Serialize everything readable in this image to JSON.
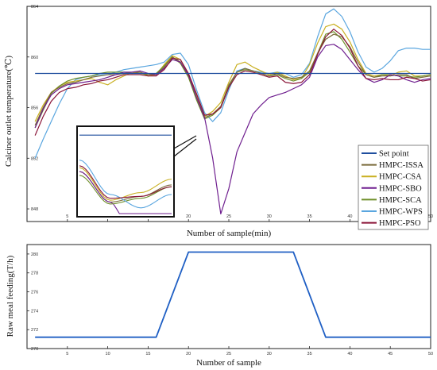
{
  "chart_data": [
    {
      "type": "line",
      "title": "",
      "xlabel": "Number of sample(min)",
      "ylabel": "Calciner outlet temperature(℃)",
      "xlim": [
        0,
        50
      ],
      "ylim": [
        847,
        864
      ],
      "x_ticks": [
        5,
        10,
        15,
        20,
        25,
        30,
        35,
        40,
        45,
        50
      ],
      "y_ticks": [
        848,
        852,
        856,
        860,
        864
      ],
      "y_tick_labels": [
        "848",
        "852",
        "856",
        "860",
        "864"
      ],
      "grid": false,
      "legend_position": "right",
      "setpoint": 858.7,
      "x": [
        1,
        2,
        3,
        4,
        5,
        6,
        7,
        8,
        9,
        10,
        11,
        12,
        13,
        14,
        15,
        16,
        17,
        18,
        19,
        20,
        21,
        22,
        23,
        24,
        25,
        26,
        27,
        28,
        29,
        30,
        31,
        32,
        33,
        34,
        35,
        36,
        37,
        38,
        39,
        40,
        41,
        42,
        43,
        44,
        45,
        46,
        47,
        48,
        49,
        50
      ],
      "series": [
        {
          "name": "Set point",
          "color": "#1f4e9e",
          "values": [
            858.7,
            858.7,
            858.7,
            858.7,
            858.7,
            858.7,
            858.7,
            858.7,
            858.7,
            858.7,
            858.7,
            858.7,
            858.7,
            858.7,
            858.7,
            858.7,
            858.7,
            858.7,
            858.7,
            858.7,
            858.7,
            858.7,
            858.7,
            858.7,
            858.7,
            858.7,
            858.7,
            858.7,
            858.7,
            858.7,
            858.7,
            858.7,
            858.7,
            858.7,
            858.7,
            858.7,
            858.7,
            858.7,
            858.7,
            858.7,
            858.7,
            858.7,
            858.7,
            858.7,
            858.7,
            858.7,
            858.7,
            858.7,
            858.7,
            858.7
          ]
        },
        {
          "name": "HMPC-ISSA",
          "color": "#7a6a3a",
          "values": [
            854.6,
            856.0,
            857.2,
            857.6,
            857.9,
            858.0,
            858.2,
            858.4,
            858.5,
            858.6,
            858.6,
            858.7,
            858.7,
            858.8,
            858.6,
            858.6,
            859.2,
            860.0,
            859.6,
            858.5,
            856.8,
            855.2,
            855.5,
            856.1,
            857.8,
            858.8,
            859.1,
            858.9,
            858.7,
            858.5,
            858.7,
            858.4,
            858.3,
            858.4,
            858.9,
            860.3,
            861.4,
            861.8,
            861.6,
            860.8,
            859.6,
            858.6,
            858.4,
            858.5,
            858.5,
            858.6,
            858.6,
            858.3,
            858.4,
            858.5
          ]
        },
        {
          "name": "HMPC-CSA",
          "color": "#c9b021",
          "values": [
            854.9,
            856.2,
            857.2,
            857.7,
            858.0,
            858.1,
            858.2,
            858.3,
            858.0,
            857.8,
            858.2,
            858.5,
            858.8,
            858.8,
            858.5,
            858.6,
            859.4,
            860.1,
            859.8,
            858.6,
            857.0,
            855.3,
            855.7,
            856.4,
            858.0,
            859.4,
            859.6,
            859.2,
            858.9,
            858.6,
            858.8,
            858.5,
            858.2,
            858.3,
            859.4,
            861.1,
            862.4,
            862.6,
            862.2,
            861.2,
            859.8,
            858.7,
            858.5,
            858.6,
            858.5,
            858.8,
            858.9,
            858.5,
            858.5,
            858.6
          ]
        },
        {
          "name": "HMPC-SBO",
          "color": "#6f1f8f",
          "values": [
            854.4,
            855.9,
            857.0,
            857.5,
            857.8,
            857.9,
            858.0,
            858.1,
            858.2,
            858.4,
            858.6,
            858.8,
            858.8,
            858.9,
            858.7,
            858.6,
            859.1,
            859.8,
            859.6,
            858.6,
            856.8,
            855.2,
            852.0,
            847.6,
            849.6,
            852.5,
            854.0,
            855.5,
            856.2,
            856.8,
            857.0,
            857.2,
            857.5,
            857.8,
            858.4,
            860.0,
            860.9,
            861.0,
            860.6,
            859.8,
            859.0,
            858.3,
            858.0,
            858.2,
            858.6,
            858.5,
            858.2,
            858.0,
            858.2,
            858.3
          ]
        },
        {
          "name": "HMPC-SCA",
          "color": "#6f8f2a",
          "values": [
            854.4,
            855.8,
            857.1,
            857.7,
            858.1,
            858.3,
            858.4,
            858.5,
            858.7,
            858.8,
            858.8,
            858.8,
            858.7,
            858.7,
            858.6,
            858.7,
            859.3,
            860.0,
            859.5,
            858.4,
            856.6,
            855.1,
            855.4,
            856.0,
            857.7,
            858.8,
            859.0,
            858.9,
            858.7,
            858.5,
            858.6,
            858.3,
            858.1,
            858.3,
            858.8,
            860.3,
            861.8,
            862.0,
            861.4,
            860.4,
            859.3,
            858.6,
            858.4,
            858.6,
            858.6,
            858.5,
            858.5,
            858.4,
            858.5,
            858.6
          ]
        },
        {
          "name": "HMPC-WPS",
          "color": "#5aa6df",
          "values": [
            852.0,
            853.5,
            854.9,
            856.3,
            857.5,
            858.2,
            858.4,
            858.5,
            858.6,
            858.6,
            858.8,
            859.0,
            859.1,
            859.2,
            859.3,
            859.4,
            859.6,
            860.2,
            860.3,
            859.4,
            857.4,
            855.6,
            854.9,
            855.6,
            857.4,
            858.9,
            859.1,
            858.9,
            858.8,
            858.7,
            858.8,
            858.7,
            858.4,
            858.6,
            859.5,
            861.6,
            863.4,
            863.8,
            863.2,
            862.0,
            860.4,
            859.2,
            858.8,
            859.1,
            859.7,
            860.5,
            860.7,
            860.7,
            860.6,
            860.6
          ]
        },
        {
          "name": "HMPC-PSO",
          "color": "#8a1538",
          "values": [
            853.8,
            855.3,
            856.5,
            857.2,
            857.5,
            857.6,
            857.8,
            857.9,
            858.1,
            858.2,
            858.4,
            858.6,
            858.6,
            858.6,
            858.5,
            858.5,
            859.0,
            859.9,
            859.8,
            858.7,
            857.1,
            855.4,
            855.5,
            856.0,
            857.6,
            858.6,
            858.9,
            858.8,
            858.6,
            858.4,
            858.5,
            858.0,
            857.9,
            858.0,
            858.6,
            860.2,
            861.6,
            862.2,
            861.7,
            860.7,
            859.3,
            858.3,
            858.2,
            858.3,
            858.2,
            858.2,
            858.4,
            858.3,
            858.1,
            858.2
          ]
        }
      ],
      "inset": {
        "x_range": [
          21,
          24
        ],
        "note": "zoomed view of samples 21-24"
      }
    },
    {
      "type": "line",
      "title": "",
      "xlabel": "Number of sample",
      "ylabel": "Raw meal feeding(T/h)",
      "xlim": [
        0,
        50
      ],
      "ylim": [
        270,
        281
      ],
      "x_ticks": [
        5,
        10,
        15,
        20,
        25,
        30,
        35,
        40,
        45,
        50
      ],
      "y_ticks": [
        270,
        272,
        274,
        276,
        278,
        280
      ],
      "grid": false,
      "series": [
        {
          "name": "",
          "color": "#1f5fc4",
          "x": [
            1,
            16,
            20,
            33,
            37,
            50
          ],
          "values": [
            271.2,
            271.2,
            280.2,
            280.2,
            271.2,
            271.2
          ]
        }
      ]
    }
  ]
}
